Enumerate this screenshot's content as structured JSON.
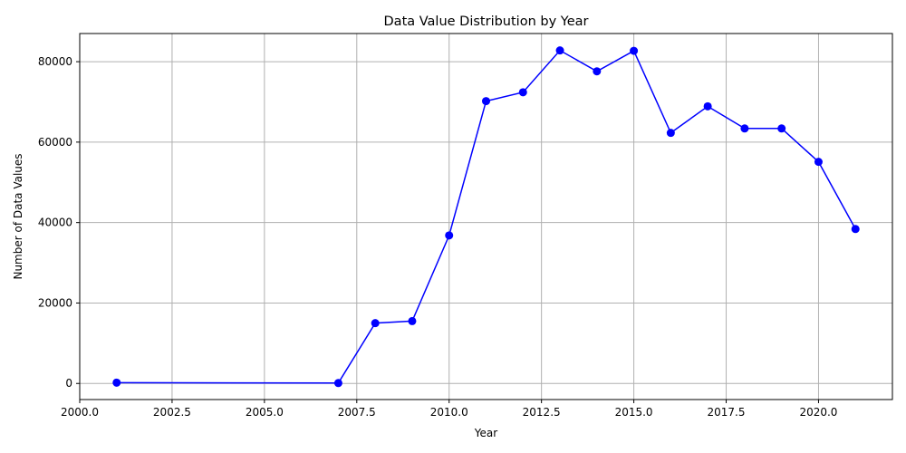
{
  "chart_data": {
    "type": "line",
    "title": "Data Value Distribution by Year",
    "xlabel": "Year",
    "ylabel": "Number of Data Values",
    "xlim": [
      2000.0,
      2022.0
    ],
    "ylim": [
      -4000,
      87000
    ],
    "x_ticks": [
      2000.0,
      2002.5,
      2005.0,
      2007.5,
      2010.0,
      2012.5,
      2015.0,
      2017.5,
      2020.0
    ],
    "x_tick_labels": [
      "2000.0",
      "2002.5",
      "2005.0",
      "2007.5",
      "2010.0",
      "2012.5",
      "2015.0",
      "2017.5",
      "2020.0"
    ],
    "y_ticks": [
      0,
      20000,
      40000,
      60000,
      80000
    ],
    "y_tick_labels": [
      "0",
      "20000",
      "40000",
      "60000",
      "80000"
    ],
    "grid": true,
    "color": "#0000ff",
    "marker": "circle",
    "series": [
      {
        "x": [
          2001,
          2007,
          2008,
          2009,
          2010,
          2011,
          2012,
          2013,
          2014,
          2015,
          2016,
          2017,
          2018,
          2019,
          2020,
          2021
        ],
        "values": [
          200,
          100,
          15000,
          15500,
          36800,
          70200,
          72400,
          82800,
          77600,
          82700,
          62300,
          68900,
          63400,
          63400,
          55100,
          38400
        ]
      }
    ]
  }
}
